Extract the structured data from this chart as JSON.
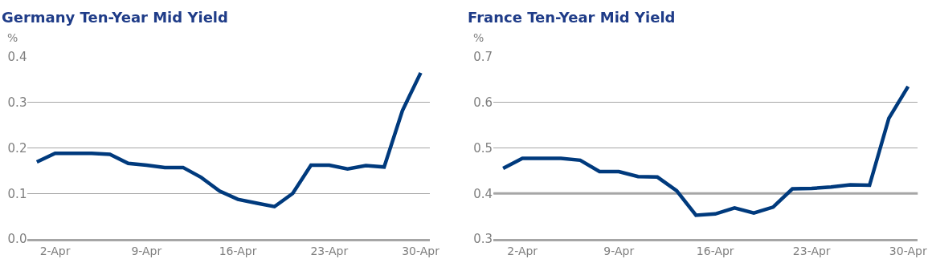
{
  "chart_data": [
    {
      "type": "line",
      "title": "Germany Ten-Year Mid Yield",
      "ylabel": "%",
      "categories": [
        null,
        "2-Apr",
        null,
        null,
        null,
        null,
        "9-Apr",
        null,
        null,
        null,
        null,
        "16-Apr",
        null,
        null,
        null,
        null,
        "23-Apr",
        null,
        null,
        null,
        null,
        "30-Apr"
      ],
      "series": [
        {
          "color": "#003a7d",
          "values": [
            0.169,
            0.188,
            0.188,
            0.188,
            0.186,
            0.166,
            0.162,
            0.157,
            0.157,
            0.135,
            0.105,
            0.087,
            0.079,
            0.071,
            0.1,
            0.162,
            0.162,
            0.154,
            0.161,
            0.158,
            0.282,
            0.365
          ]
        }
      ],
      "ylim": [
        0,
        0.4
      ],
      "yticks": [
        {
          "value": 0,
          "label": "0.0"
        },
        0.1,
        0.2,
        0.3,
        0.4
      ],
      "grid": "y",
      "legend": false,
      "marker": "none",
      "line_style": "solid"
    },
    {
      "type": "line",
      "title": "France Ten-Year Mid Yield",
      "ylabel": "%",
      "categories": [
        null,
        "2-Apr",
        null,
        null,
        null,
        null,
        "9-Apr",
        null,
        null,
        null,
        null,
        "16-Apr",
        null,
        null,
        null,
        null,
        "23-Apr",
        null,
        null,
        null,
        null,
        "30-Apr"
      ],
      "series": [
        {
          "color": "#003a7d",
          "values": [
            0.455,
            0.477,
            0.477,
            0.477,
            0.473,
            0.448,
            0.448,
            0.437,
            0.436,
            0.406,
            0.352,
            0.355,
            0.368,
            0.357,
            0.37,
            0.41,
            0.411,
            0.414,
            0.419,
            0.418,
            0.565,
            0.635
          ]
        }
      ],
      "ylim": [
        0.3,
        0.7
      ],
      "yticks": [
        0.3,
        0.4,
        0.5,
        0.6,
        0.7
      ],
      "grid": "y",
      "legend": false,
      "marker": "none",
      "line_style": "solid",
      "ref_lines": [
        {
          "axis": "y",
          "value": 0.4,
          "color": "#a6a6a6"
        }
      ]
    }
  ]
}
